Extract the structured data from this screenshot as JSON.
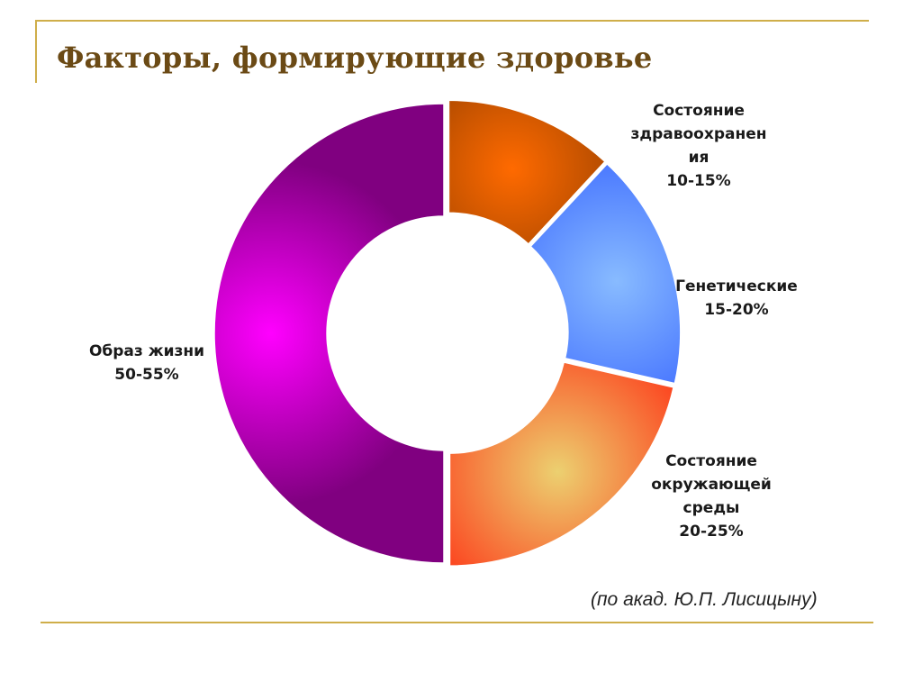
{
  "title": "Факторы, формирующие здоровье",
  "caption": "(по акад. Ю.П. Лисицыну)",
  "chart_data": {
    "type": "pie",
    "style": "donut",
    "slices": [
      {
        "label_lines": [
          "Состояние",
          "здравоохранен",
          "ия",
          "10-15%"
        ],
        "value": 12.5,
        "color": "#ff6a00",
        "edge": "#7a3500"
      },
      {
        "label_lines": [
          "Генетические",
          "15-20%"
        ],
        "value": 17.5,
        "color": "#88bbff",
        "edge": "#2f5bff"
      },
      {
        "label_lines": [
          "Состояние",
          "окружающей",
          "среды",
          "20-25%"
        ],
        "value": 22.5,
        "color": "#ecd070",
        "edge": "#ff2a10"
      },
      {
        "label_lines": [
          "Образ жизни",
          "50-55%"
        ],
        "value": 52.5,
        "color": "#ff00ff",
        "edge": "#800080"
      }
    ]
  },
  "colors": {
    "rule": "#cfae4a",
    "title": "#6b4a15"
  }
}
